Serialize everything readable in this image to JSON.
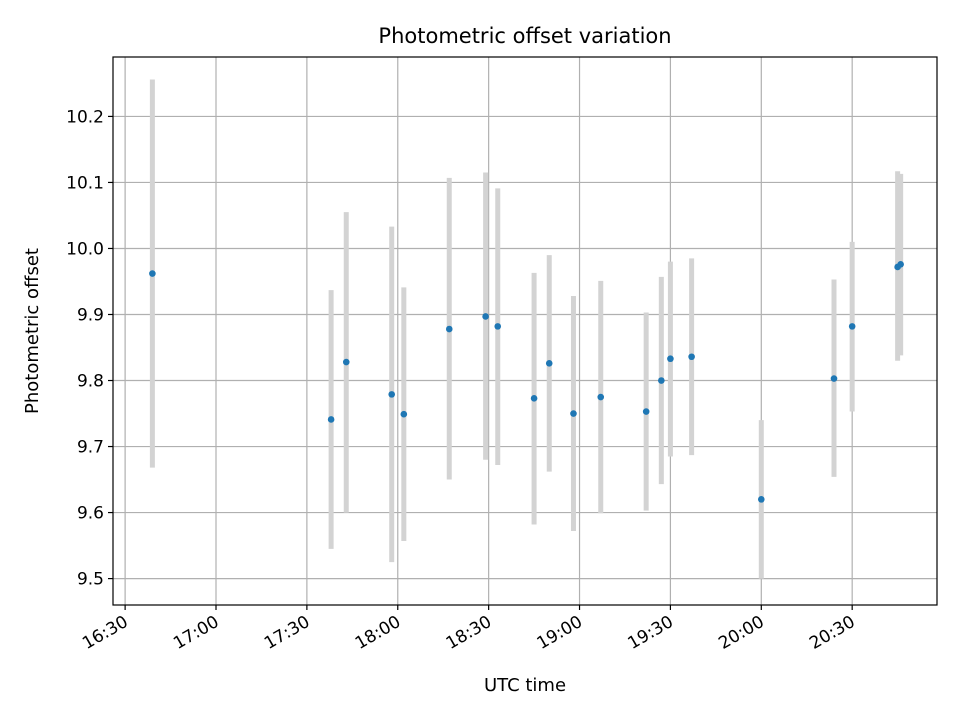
{
  "chart_data": {
    "type": "scatter",
    "title": "Photometric offset variation",
    "xlabel": "UTC time",
    "ylabel": "Photometric offset",
    "xlim": [
      "16:26",
      "20:58"
    ],
    "ylim": [
      9.46,
      10.29
    ],
    "grid": true,
    "x_ticks": [
      "16:30",
      "17:00",
      "17:30",
      "18:00",
      "18:30",
      "19:00",
      "19:30",
      "20:00",
      "20:30"
    ],
    "y_ticks": [
      "9.5",
      "9.6",
      "9.7",
      "9.8",
      "9.9",
      "10.0",
      "10.1",
      "10.2"
    ],
    "point_color": "#1f77b4",
    "errorbar_color": "#d3d3d3",
    "points": [
      {
        "x": "16:39",
        "y": 9.962,
        "low": 9.668,
        "high": 10.256
      },
      {
        "x": "17:38",
        "y": 9.741,
        "low": 9.545,
        "high": 9.937
      },
      {
        "x": "17:43",
        "y": 9.828,
        "low": 9.6,
        "high": 10.055
      },
      {
        "x": "17:58",
        "y": 9.779,
        "low": 9.525,
        "high": 10.033
      },
      {
        "x": "18:02",
        "y": 9.749,
        "low": 9.557,
        "high": 9.941
      },
      {
        "x": "18:17",
        "y": 9.878,
        "low": 9.65,
        "high": 10.107
      },
      {
        "x": "18:29",
        "y": 9.897,
        "low": 9.68,
        "high": 10.115
      },
      {
        "x": "18:33",
        "y": 9.882,
        "low": 9.672,
        "high": 10.091
      },
      {
        "x": "18:45",
        "y": 9.773,
        "low": 9.582,
        "high": 9.963
      },
      {
        "x": "18:50",
        "y": 9.826,
        "low": 9.662,
        "high": 9.99
      },
      {
        "x": "18:58",
        "y": 9.75,
        "low": 9.572,
        "high": 9.928
      },
      {
        "x": "19:07",
        "y": 9.775,
        "low": 9.599,
        "high": 9.951
      },
      {
        "x": "19:22",
        "y": 9.753,
        "low": 9.603,
        "high": 9.903
      },
      {
        "x": "19:27",
        "y": 9.8,
        "low": 9.643,
        "high": 9.957
      },
      {
        "x": "19:30",
        "y": 9.833,
        "low": 9.685,
        "high": 9.98
      },
      {
        "x": "19:37",
        "y": 9.836,
        "low": 9.687,
        "high": 9.985
      },
      {
        "x": "20:00",
        "y": 9.62,
        "low": 9.5,
        "high": 9.74
      },
      {
        "x": "20:24",
        "y": 9.803,
        "low": 9.654,
        "high": 9.953
      },
      {
        "x": "20:30",
        "y": 9.882,
        "low": 9.753,
        "high": 10.01
      },
      {
        "x": "20:45",
        "y": 9.972,
        "low": 9.83,
        "high": 10.117
      },
      {
        "x": "20:46",
        "y": 9.976,
        "low": 9.838,
        "high": 10.113
      }
    ]
  }
}
